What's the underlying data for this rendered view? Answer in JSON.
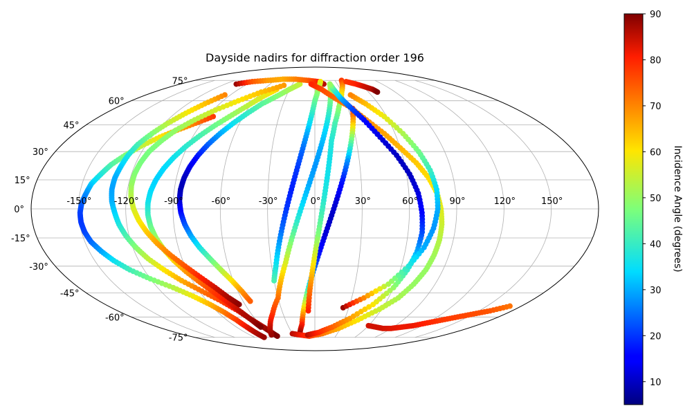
{
  "chart_data": {
    "type": "scatter",
    "projection": "mollweide",
    "title": "Dayside nadirs for diffraction order 196",
    "grid": true,
    "longitude_ticks": [
      "-150°",
      "-120°",
      "-90°",
      "-60°",
      "-30°",
      "0°",
      "30°",
      "60°",
      "90°",
      "120°",
      "150°"
    ],
    "latitude_ticks": [
      "75°",
      "60°",
      "45°",
      "30°",
      "15°",
      "0°",
      "-15°",
      "-30°",
      "-45°",
      "-60°",
      "-75°"
    ],
    "colorbar": {
      "label": "Incidence Angle (degrees)",
      "colormap": "jet",
      "range": [
        5,
        90
      ],
      "ticks": [
        "10",
        "20",
        "30",
        "40",
        "50",
        "60",
        "70",
        "80",
        "90"
      ]
    },
    "series": [
      {
        "lon": [
          -85,
          -95,
          -105,
          -114,
          -123,
          -130,
          -136,
          -140,
          -144,
          -146,
          -148,
          -149,
          -149,
          -148,
          -146,
          -142,
          -137,
          -130,
          -120,
          -108,
          -98,
          -90,
          -84,
          -80,
          -78,
          -77,
          -76
        ],
        "lat": [
          50,
          46,
          42,
          38,
          33,
          28,
          23,
          18,
          13,
          8,
          3,
          -2,
          -7,
          -12,
          -17,
          -22,
          -27,
          -32,
          -37,
          -42,
          -47,
          -52,
          -57,
          -62,
          -67,
          -71,
          -75
        ],
        "inc": [
          78,
          72,
          66,
          60,
          54,
          48,
          43,
          38,
          33,
          28,
          24,
          21,
          20,
          21,
          24,
          29,
          35,
          41,
          47,
          53,
          59,
          65,
          71,
          77,
          82,
          86,
          88
        ]
      },
      {
        "lon": [
          -96,
          -104,
          -111,
          -117,
          -122,
          -126,
          -128,
          -129,
          -130,
          -130,
          -129,
          -127,
          -125,
          -122,
          -118,
          -113,
          -106,
          -98,
          -88,
          -78,
          -70,
          -64,
          -59,
          -56,
          -54
        ],
        "lat": [
          64,
          58,
          52,
          46,
          40,
          34,
          28,
          22,
          16,
          10,
          4,
          -2,
          -8,
          -14,
          -20,
          -26,
          -32,
          -38,
          -44,
          -50,
          -56,
          -62,
          -67,
          -71,
          -74
        ],
        "inc": [
          70,
          64,
          59,
          54,
          48,
          42,
          37,
          33,
          30,
          29,
          30,
          33,
          37,
          42,
          48,
          54,
          60,
          66,
          72,
          77,
          82,
          85,
          87,
          89,
          90
        ]
      },
      {
        "lon": [
          -45,
          -54,
          -62,
          -70,
          -78,
          -85,
          -91,
          -96,
          -100,
          -103,
          -105,
          -106,
          -106,
          -105,
          -103,
          -100,
          -96,
          -91,
          -85,
          -79,
          -73,
          -68,
          -64,
          -62
        ],
        "lat": [
          68,
          63,
          57,
          51,
          45,
          39,
          33,
          27,
          21,
          15,
          9,
          3,
          -3,
          -9,
          -15,
          -21,
          -27,
          -33,
          -39,
          -45,
          -51,
          -57,
          -63,
          -67
        ],
        "inc": [
          62,
          58,
          54,
          50,
          46,
          42,
          39,
          36,
          34,
          33,
          34,
          36,
          40,
          45,
          50,
          56,
          62,
          68,
          73,
          78,
          82,
          86,
          88,
          90
        ]
      },
      {
        "lon": [
          -40,
          -60,
          -75,
          -88,
          -98,
          -106,
          -111,
          -115,
          -117,
          -118,
          -118,
          -117,
          -115,
          -112,
          -108,
          -103,
          -97,
          -90,
          -83,
          -76,
          -70,
          -65
        ],
        "lat": [
          71,
          66,
          60,
          54,
          48,
          42,
          36,
          30,
          24,
          18,
          12,
          6,
          0,
          -6,
          -12,
          -18,
          -24,
          -30,
          -36,
          -42,
          -48,
          -52
        ],
        "inc": [
          68,
          64,
          60,
          56,
          53,
          50,
          48,
          47,
          47,
          48,
          50,
          53,
          56,
          59,
          63,
          67,
          71,
          75,
          80,
          84,
          87,
          89
        ]
      },
      {
        "lon": [
          -20,
          -30,
          -40,
          -50,
          -58,
          -65,
          -71,
          -76,
          -80,
          -83,
          -85,
          -86,
          -86,
          -85,
          -83,
          -80,
          -76,
          -71,
          -66,
          -61,
          -57,
          -54
        ],
        "lat": [
          72,
          68,
          63,
          58,
          52,
          46,
          40,
          34,
          28,
          22,
          16,
          10,
          4,
          -2,
          -8,
          -14,
          -20,
          -26,
          -32,
          -38,
          -44,
          -50
        ],
        "inc": [
          55,
          52,
          48,
          44,
          40,
          36,
          30,
          24,
          18,
          13,
          10,
          9,
          11,
          16,
          22,
          29,
          36,
          44,
          52,
          60,
          68,
          74
        ]
      },
      {
        "lon": [
          -105,
          -90,
          -70,
          -50,
          -30,
          -10,
          5,
          12
        ],
        "lat": [
          72,
          74,
          75,
          76,
          76,
          75,
          74,
          72
        ],
        "inc": [
          88,
          75,
          68,
          66,
          70,
          74,
          80,
          86
        ]
      },
      {
        "lon": [
          8,
          4,
          0,
          -3,
          -6,
          -9,
          -12,
          -15,
          -18,
          -21,
          -24,
          -27,
          -30
        ],
        "lat": [
          74,
          68,
          60,
          50,
          40,
          30,
          20,
          10,
          0,
          -10,
          -20,
          -30,
          -38
        ],
        "inc": [
          60,
          52,
          45,
          38,
          30,
          24,
          20,
          18,
          20,
          24,
          30,
          36,
          42
        ]
      },
      {
        "lon": [
          20,
          16,
          12,
          8,
          4,
          0,
          -4,
          -8,
          -12,
          -16,
          -20,
          -25,
          -30,
          -40,
          -50,
          -60
        ],
        "lat": [
          72,
          62,
          52,
          42,
          32,
          22,
          12,
          2,
          -8,
          -18,
          -28,
          -38,
          -48,
          -58,
          -66,
          -73
        ],
        "inc": [
          56,
          48,
          40,
          34,
          30,
          28,
          30,
          34,
          40,
          48,
          56,
          64,
          72,
          78,
          84,
          88
        ]
      },
      {
        "lon": [
          34,
          30,
          26,
          22,
          18,
          14,
          10,
          6,
          2,
          -2,
          -6,
          -10,
          -14,
          -20
        ],
        "lat": [
          55,
          45,
          35,
          25,
          15,
          5,
          -5,
          -15,
          -25,
          -35,
          -45,
          -55,
          -65,
          -72
        ],
        "inc": [
          80,
          62,
          44,
          28,
          18,
          12,
          10,
          12,
          18,
          28,
          44,
          62,
          80,
          88
        ]
      },
      {
        "lon": [
          40,
          30,
          22,
          16,
          12,
          10,
          8,
          6,
          4,
          2,
          0,
          -2,
          -4,
          -6
        ],
        "lat": [
          75,
          66,
          56,
          46,
          36,
          26,
          16,
          6,
          -4,
          -14,
          -24,
          -34,
          -44,
          -56
        ],
        "inc": [
          78,
          62,
          50,
          42,
          38,
          36,
          36,
          38,
          42,
          48,
          56,
          64,
          72,
          80
        ]
      },
      {
        "lon": [
          -30,
          -20,
          -8,
          10,
          28,
          44,
          58,
          68,
          74,
          78,
          80,
          81,
          81,
          80,
          78,
          74,
          68,
          60,
          52,
          42,
          32,
          20,
          8,
          -5
        ],
        "lat": [
          -72,
          -73,
          -74,
          -72,
          -68,
          -62,
          -55,
          -48,
          -40,
          -32,
          -24,
          -16,
          -8,
          0,
          8,
          16,
          24,
          32,
          40,
          48,
          56,
          62,
          68,
          72
        ],
        "inc": [
          86,
          82,
          78,
          72,
          66,
          60,
          55,
          52,
          50,
          50,
          51,
          53,
          55,
          57,
          59,
          61,
          63,
          65,
          67,
          69,
          71,
          73,
          76,
          80
        ]
      },
      {
        "lon": [
          -10,
          5,
          20,
          35,
          50,
          60,
          65,
          68,
          69,
          68,
          66,
          62,
          56,
          48,
          40,
          32,
          26,
          22,
          20
        ],
        "lat": [
          -73,
          -71,
          -67,
          -61,
          -52,
          -42,
          -32,
          -22,
          -12,
          -2,
          8,
          18,
          28,
          38,
          48,
          56,
          62,
          68,
          72
        ],
        "inc": [
          86,
          80,
          74,
          68,
          60,
          50,
          40,
          30,
          22,
          16,
          12,
          10,
          10,
          12,
          16,
          22,
          30,
          40,
          50
        ]
      },
      {
        "lon": [
          25,
          40,
          55,
          65,
          72,
          76,
          78,
          78,
          76,
          72,
          66,
          58,
          48,
          38
        ],
        "lat": [
          -54,
          -48,
          -40,
          -30,
          -20,
          -10,
          0,
          10,
          20,
          30,
          40,
          50,
          58,
          64
        ],
        "inc": [
          88,
          70,
          52,
          38,
          30,
          28,
          30,
          34,
          40,
          46,
          52,
          58,
          64,
          70
        ]
      },
      {
        "lon": [
          60,
          70,
          80,
          90,
          100,
          110,
          120,
          130,
          140,
          150,
          160,
          170
        ],
        "lat": [
          -66,
          -67,
          -68,
          -68,
          -67,
          -66,
          -64,
          -62,
          -60,
          -58,
          -56,
          -53
        ],
        "inc": [
          84,
          84,
          84,
          83,
          82,
          82,
          80,
          78,
          77,
          76,
          75,
          72
        ]
      },
      {
        "lon": [
          45,
          55,
          62,
          68,
          70
        ],
        "lat": [
          74,
          72,
          70,
          68,
          66
        ],
        "inc": [
          78,
          80,
          84,
          86,
          90
        ]
      }
    ]
  }
}
